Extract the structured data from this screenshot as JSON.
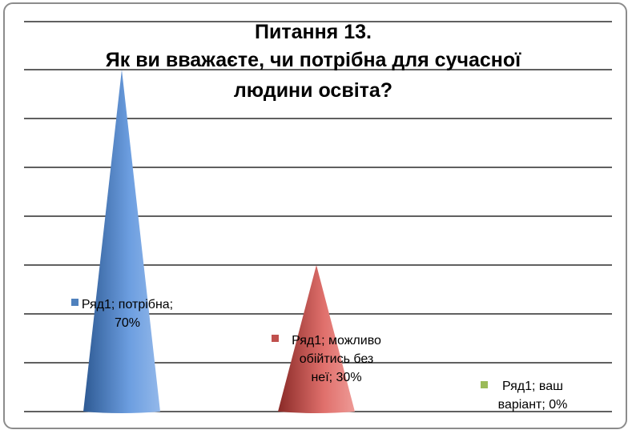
{
  "chart_data": {
    "type": "bar",
    "shape": "cone",
    "title_lines": [
      "Питання 13.",
      "Як ви вважаєте, чи потрібна для сучасної",
      "людини освіта?"
    ],
    "categories": [
      "потрібна",
      "можливо обійтись без неї",
      "ваш варіант"
    ],
    "series": [
      {
        "name": "Ряд1",
        "values": [
          70,
          30,
          0
        ]
      }
    ],
    "unit": "%",
    "ylim": [
      0,
      70
    ],
    "grid": true,
    "legend": "none",
    "data_labels": [
      {
        "lines": [
          "Ряд1; потрібна;",
          "70%"
        ]
      },
      {
        "lines": [
          "Ряд1; можливо",
          "обійтись без",
          "неї; 30%"
        ]
      },
      {
        "lines": [
          "Ряд1; ваш",
          "варіант; 0%"
        ]
      }
    ],
    "colors": {
      "cones": [
        "#4f81bd",
        "#c0504d",
        "#9bbb59"
      ],
      "gridline": "#000000",
      "frame": "#8c8c8c"
    }
  }
}
